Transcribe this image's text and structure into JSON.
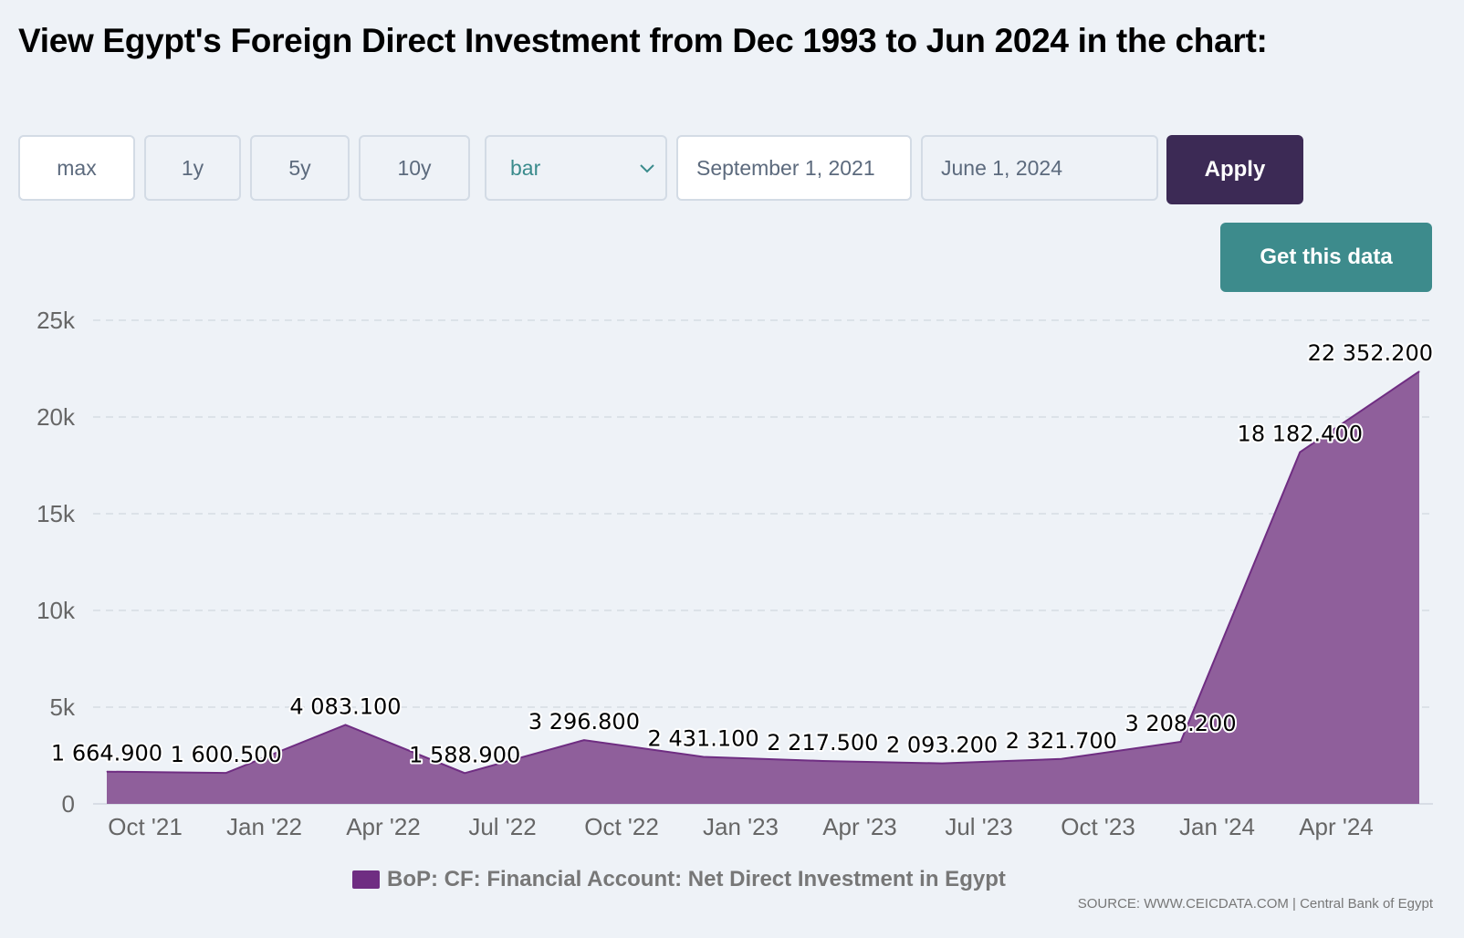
{
  "page": {
    "title": "View Egypt's Foreign Direct Investment from Dec 1993 to Jun 2024 in the chart:"
  },
  "controls": {
    "range_buttons": [
      "max",
      "1y",
      "5y",
      "10y"
    ],
    "chart_type_selected": "bar",
    "start_date": "September 1, 2021",
    "end_date": "June 1, 2024",
    "apply_label": "Apply",
    "get_data_label": "Get this data"
  },
  "colors": {
    "area_fill": "#8f5f9b",
    "area_line": "#6f2d82",
    "apply_bg": "#3c2a55",
    "get_data_bg": "#3d8b8c"
  },
  "source": "SOURCE: WWW.CEICDATA.COM | Central Bank of Egypt",
  "chart_data": {
    "type": "area",
    "x": [
      "Sep 2021",
      "Dec 2021",
      "Mar 2022",
      "Jun 2022",
      "Sep 2022",
      "Dec 2022",
      "Mar 2023",
      "Jun 2023",
      "Sep 2023",
      "Dec 2023",
      "Mar 2024",
      "Jun 2024"
    ],
    "series": [
      {
        "name": "BoP: CF: Financial Account: Net Direct Investment in Egypt",
        "values": [
          1664.9,
          1600.5,
          4083.1,
          1588.9,
          3296.8,
          2431.1,
          2217.5,
          2093.2,
          2321.7,
          3208.2,
          18182.4,
          22352.2
        ]
      }
    ],
    "data_labels": [
      "1 664.900",
      "1 600.500",
      "4 083.100",
      "1 588.900",
      "3 296.800",
      "2 431.100",
      "2 217.500",
      "2 093.200",
      "2 321.700",
      "3 208.200",
      "18 182.400",
      "22 352.200"
    ],
    "x_ticks": [
      "Oct '21",
      "Jan '22",
      "Apr '22",
      "Jul '22",
      "Oct '22",
      "Jan '23",
      "Apr '23",
      "Jul '23",
      "Oct '23",
      "Jan '24",
      "Apr '24"
    ],
    "y_ticks": [
      "0",
      "5k",
      "10k",
      "15k",
      "20k",
      "25k"
    ],
    "ylim": [
      0,
      25000
    ],
    "grid": true,
    "legend_position": "bottom-center"
  }
}
